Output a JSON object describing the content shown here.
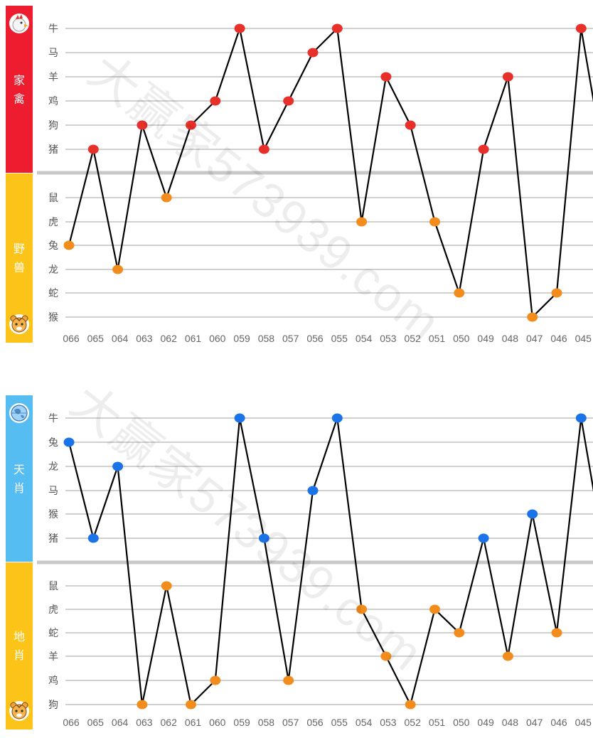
{
  "watermark": "大赢家573939.com",
  "chart_data": [
    {
      "type": "line",
      "upper_group": {
        "label": "家禽",
        "color": "#ed1c2e",
        "point_color": "#e8302a",
        "icon": "rooster-icon"
      },
      "lower_group": {
        "label": "野兽",
        "color": "#fcc419",
        "point_color": "#f28c1c",
        "icon": "tiger-icon"
      },
      "upper_categories": [
        "牛",
        "马",
        "羊",
        "鸡",
        "狗",
        "猪"
      ],
      "lower_categories": [
        "鼠",
        "虎",
        "兔",
        "龙",
        "蛇",
        "猴"
      ],
      "x": [
        "066",
        "065",
        "064",
        "063",
        "062",
        "061",
        "060",
        "059",
        "058",
        "057",
        "056",
        "055",
        "054",
        "053",
        "052",
        "051",
        "050",
        "049",
        "048",
        "047",
        "046",
        "045"
      ],
      "values": [
        "兔",
        "猪",
        "龙",
        "狗",
        "鼠",
        "狗",
        "鸡",
        "牛",
        "猪",
        "鸡",
        "马",
        "牛",
        "虎",
        "羊",
        "狗",
        "虎",
        "蛇",
        "猪",
        "羊",
        "猴",
        "蛇",
        "牛"
      ],
      "grid": true,
      "line_color": "#000000"
    },
    {
      "type": "line",
      "upper_group": {
        "label": "天肖",
        "color": "#55bdf2",
        "point_color": "#1a73e8",
        "icon": "globe-icon"
      },
      "lower_group": {
        "label": "地肖",
        "color": "#fcc419",
        "point_color": "#f28c1c",
        "icon": "tiger-icon"
      },
      "upper_categories": [
        "牛",
        "兔",
        "龙",
        "马",
        "猴",
        "猪"
      ],
      "lower_categories": [
        "鼠",
        "虎",
        "蛇",
        "羊",
        "鸡",
        "狗"
      ],
      "x": [
        "066",
        "065",
        "064",
        "063",
        "062",
        "061",
        "060",
        "059",
        "058",
        "057",
        "056",
        "055",
        "054",
        "053",
        "052",
        "051",
        "050",
        "049",
        "048",
        "047",
        "046",
        "045"
      ],
      "values": [
        "兔",
        "猪",
        "龙",
        "狗",
        "鼠",
        "狗",
        "鸡",
        "牛",
        "猪",
        "鸡",
        "马",
        "牛",
        "虎",
        "羊",
        "狗",
        "虎",
        "蛇",
        "猪",
        "羊",
        "猴",
        "蛇",
        "牛"
      ],
      "grid": true,
      "line_color": "#000000"
    }
  ]
}
